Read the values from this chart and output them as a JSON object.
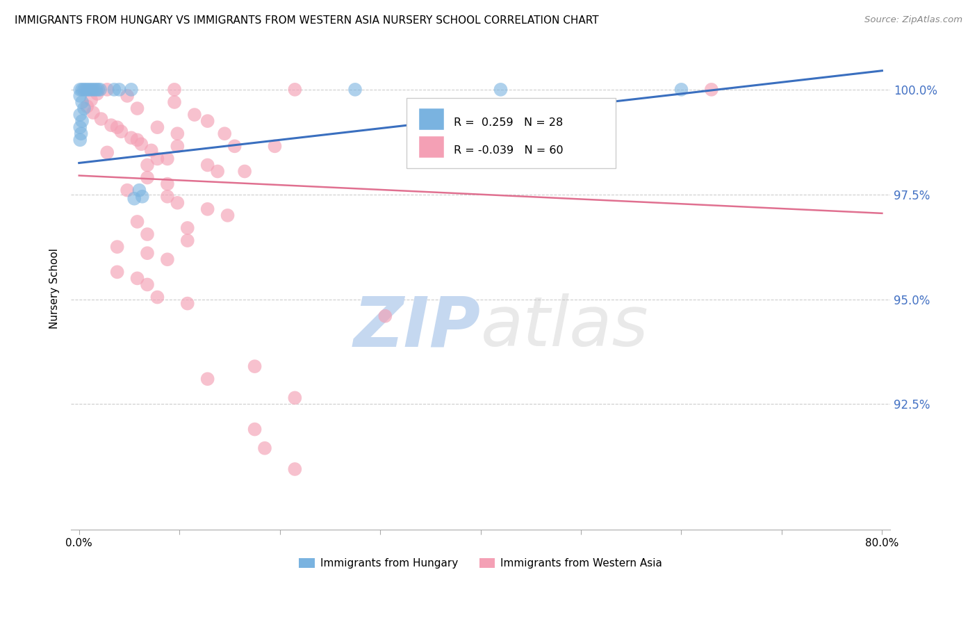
{
  "title": "IMMIGRANTS FROM HUNGARY VS IMMIGRANTS FROM WESTERN ASIA NURSERY SCHOOL CORRELATION CHART",
  "source": "Source: ZipAtlas.com",
  "ylabel": "Nursery School",
  "ytick_labels": [
    "100.0%",
    "97.5%",
    "95.0%",
    "92.5%"
  ],
  "ytick_values": [
    1.0,
    0.975,
    0.95,
    0.925
  ],
  "ylim": [
    0.895,
    1.01
  ],
  "xlim": [
    -0.008,
    0.808
  ],
  "legend_blue_r": "R =  0.259",
  "legend_blue_n": "N = 28",
  "legend_pink_r": "R = -0.039",
  "legend_pink_n": "N = 60",
  "blue_color": "#7ab3e0",
  "pink_color": "#f4a0b5",
  "trendline_blue": "#3a6fbf",
  "trendline_pink": "#e07090",
  "watermark_zip": "ZIP",
  "watermark_atlas": "atlas",
  "watermark_color_zip": "#c5d8f0",
  "watermark_color_atlas": "#c0c0c0",
  "blue_scatter": [
    [
      0.001,
      1.0
    ],
    [
      0.003,
      1.0
    ],
    [
      0.005,
      1.0
    ],
    [
      0.007,
      1.0
    ],
    [
      0.009,
      1.0
    ],
    [
      0.011,
      1.0
    ],
    [
      0.013,
      1.0
    ],
    [
      0.015,
      1.0
    ],
    [
      0.017,
      1.0
    ],
    [
      0.019,
      1.0
    ],
    [
      0.021,
      1.0
    ],
    [
      0.035,
      1.0
    ],
    [
      0.04,
      1.0
    ],
    [
      0.052,
      1.0
    ],
    [
      0.001,
      0.9985
    ],
    [
      0.003,
      0.997
    ],
    [
      0.005,
      0.9955
    ],
    [
      0.001,
      0.994
    ],
    [
      0.003,
      0.9925
    ],
    [
      0.001,
      0.991
    ],
    [
      0.002,
      0.9895
    ],
    [
      0.001,
      0.988
    ],
    [
      0.275,
      1.0
    ],
    [
      0.42,
      1.0
    ],
    [
      0.6,
      1.0
    ],
    [
      0.06,
      0.976
    ],
    [
      0.063,
      0.9745
    ],
    [
      0.055,
      0.974
    ]
  ],
  "pink_scatter": [
    [
      0.028,
      1.0
    ],
    [
      0.095,
      1.0
    ],
    [
      0.215,
      1.0
    ],
    [
      0.63,
      1.0
    ],
    [
      0.048,
      0.9985
    ],
    [
      0.095,
      0.997
    ],
    [
      0.058,
      0.9955
    ],
    [
      0.115,
      0.994
    ],
    [
      0.128,
      0.9925
    ],
    [
      0.038,
      0.991
    ],
    [
      0.078,
      0.991
    ],
    [
      0.098,
      0.9895
    ],
    [
      0.145,
      0.9895
    ],
    [
      0.058,
      0.988
    ],
    [
      0.098,
      0.9865
    ],
    [
      0.155,
      0.9865
    ],
    [
      0.195,
      0.9865
    ],
    [
      0.028,
      0.985
    ],
    [
      0.078,
      0.9835
    ],
    [
      0.088,
      0.9835
    ],
    [
      0.068,
      0.982
    ],
    [
      0.128,
      0.982
    ],
    [
      0.138,
      0.9805
    ],
    [
      0.165,
      0.9805
    ],
    [
      0.068,
      0.979
    ],
    [
      0.088,
      0.9775
    ],
    [
      0.048,
      0.976
    ],
    [
      0.088,
      0.9745
    ],
    [
      0.098,
      0.973
    ],
    [
      0.128,
      0.9715
    ],
    [
      0.148,
      0.97
    ],
    [
      0.058,
      0.9685
    ],
    [
      0.108,
      0.967
    ],
    [
      0.068,
      0.9655
    ],
    [
      0.108,
      0.964
    ],
    [
      0.038,
      0.9625
    ],
    [
      0.068,
      0.961
    ],
    [
      0.088,
      0.9595
    ],
    [
      0.038,
      0.9565
    ],
    [
      0.058,
      0.955
    ],
    [
      0.068,
      0.9535
    ],
    [
      0.078,
      0.9505
    ],
    [
      0.108,
      0.949
    ],
    [
      0.305,
      0.946
    ],
    [
      0.175,
      0.934
    ],
    [
      0.128,
      0.931
    ],
    [
      0.215,
      0.9265
    ],
    [
      0.175,
      0.919
    ],
    [
      0.185,
      0.9145
    ],
    [
      0.215,
      0.9095
    ],
    [
      0.018,
      0.999
    ],
    [
      0.012,
      0.9975
    ],
    [
      0.008,
      0.996
    ],
    [
      0.014,
      0.9945
    ],
    [
      0.022,
      0.993
    ],
    [
      0.032,
      0.9915
    ],
    [
      0.042,
      0.99
    ],
    [
      0.052,
      0.9885
    ],
    [
      0.062,
      0.987
    ],
    [
      0.072,
      0.9855
    ]
  ],
  "blue_trend_x": [
    0.0,
    0.8
  ],
  "blue_trend_y": [
    0.9825,
    1.0045
  ],
  "pink_trend_x": [
    0.0,
    0.8
  ],
  "pink_trend_y": [
    0.9795,
    0.9705
  ]
}
